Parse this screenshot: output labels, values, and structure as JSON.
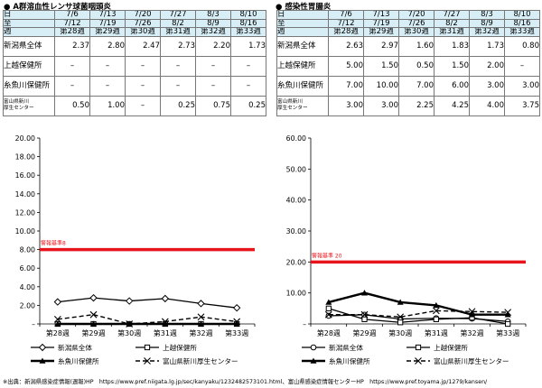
{
  "footnote": "※出典：新潟県感染症情報(週報)HP　https://www.pref.niigata.lg.jp/sec/kanyaku/1232482573101.html、富山県感染症情報センターHP　https://www.pref.toyama.jp/1279/kansen/",
  "header_labels": [
    "日",
    "至",
    "週"
  ],
  "weeks": [
    {
      "from": "7/6",
      "to": "7/12",
      "week": "第28週"
    },
    {
      "from": "7/13",
      "to": "7/19",
      "week": "第29週"
    },
    {
      "from": "7/20",
      "to": "7/26",
      "week": "第30週"
    },
    {
      "from": "7/27",
      "to": "8/2",
      "week": "第31週"
    },
    {
      "from": "8/3",
      "to": "8/9",
      "week": "第32週"
    },
    {
      "from": "8/10",
      "to": "8/16",
      "week": "第33週"
    }
  ],
  "series_names": [
    "新潟県全体",
    "上越保健所",
    "糸魚川保健所",
    "富山県新川厚生センター"
  ],
  "series_labels_table": [
    "新潟県全体",
    "上越保健所",
    "糸魚川保健所",
    "富山県新川\n厚生センター"
  ],
  "legend_labels": [
    "新潟県全体",
    "上越保健所",
    "糸魚川保健所",
    "富山県新川厚生センター"
  ],
  "colors": {
    "header_bg": "#d7eef6",
    "threshold": "#e8141b",
    "series": "#000000"
  },
  "panels": [
    {
      "title": "● A群溶血性レンサ球菌咽頭炎",
      "table_values": [
        [
          "2.37",
          "2.80",
          "2.47",
          "2.73",
          "2.20",
          "1.73"
        ],
        [
          "–",
          "–",
          "–",
          "–",
          "–",
          "–"
        ],
        [
          "–",
          "–",
          "–",
          "–",
          "–",
          "–"
        ],
        [
          "0.50",
          "1.00",
          "–",
          "0.25",
          "0.75",
          "0.25"
        ]
      ],
      "chart": {
        "y_ticks": [
          "–",
          "2.00",
          "4.00",
          "6.00",
          "8.00",
          "10.00",
          "12.00",
          "14.00",
          "16.00",
          "18.00",
          "20.00"
        ],
        "threshold_label": "警報基準8"
      }
    },
    {
      "title": "● 感染性胃腸炎",
      "table_values": [
        [
          "2.63",
          "2.97",
          "1.60",
          "1.83",
          "1.73",
          "0.80"
        ],
        [
          "5.00",
          "1.50",
          "0.50",
          "1.50",
          "2.00",
          "–"
        ],
        [
          "7.00",
          "10.00",
          "7.00",
          "6.00",
          "3.00",
          "3.00"
        ],
        [
          "3.00",
          "3.00",
          "2.25",
          "4.25",
          "4.00",
          "3.75"
        ]
      ],
      "chart": {
        "y_ticks": [
          "–",
          "10.00",
          "20.00",
          "30.00",
          "40.00",
          "50.00",
          "60.00"
        ],
        "threshold_label": "警報基準 20"
      }
    }
  ],
  "chart_data": [
    {
      "type": "line",
      "title": "A群溶血性レンサ球菌咽頭炎",
      "categories": [
        "第28週",
        "第29週",
        "第30週",
        "第31週",
        "第32週",
        "第33週"
      ],
      "series": [
        {
          "name": "新潟県全体",
          "values": [
            2.37,
            2.8,
            2.47,
            2.73,
            2.2,
            1.73
          ],
          "marker": "diamond-open"
        },
        {
          "name": "上越保健所",
          "values": [
            0,
            0,
            0,
            0,
            0,
            0
          ],
          "marker": "square-open"
        },
        {
          "name": "糸魚川保健所",
          "values": [
            0,
            0,
            0,
            0,
            0,
            0
          ],
          "marker": "triangle-filled"
        },
        {
          "name": "富山県新川厚生センター",
          "values": [
            0.5,
            1.0,
            0,
            0.25,
            0.75,
            0.25
          ],
          "marker": "cross",
          "dashed": true
        }
      ],
      "threshold": 8,
      "ylim": [
        0,
        20
      ],
      "grid": false,
      "legend_position": "bottom"
    },
    {
      "type": "line",
      "title": "感染性胃腸炎",
      "categories": [
        "第28週",
        "第29週",
        "第30週",
        "第31週",
        "第32週",
        "第33週"
      ],
      "series": [
        {
          "name": "新潟県全体",
          "values": [
            2.63,
            2.97,
            1.6,
            1.83,
            1.73,
            0.8
          ],
          "marker": "circle-open"
        },
        {
          "name": "上越保健所",
          "values": [
            5.0,
            1.5,
            0.5,
            1.5,
            2.0,
            0
          ],
          "marker": "square-open"
        },
        {
          "name": "糸魚川保健所",
          "values": [
            7.0,
            10.0,
            7.0,
            6.0,
            3.0,
            3.0
          ],
          "marker": "triangle-filled"
        },
        {
          "name": "富山県新川厚生センター",
          "values": [
            3.0,
            3.0,
            2.25,
            4.25,
            4.0,
            3.75
          ],
          "marker": "cross",
          "dashed": true
        }
      ],
      "threshold": 20,
      "ylim": [
        0,
        60
      ],
      "grid": false,
      "legend_position": "bottom"
    }
  ]
}
